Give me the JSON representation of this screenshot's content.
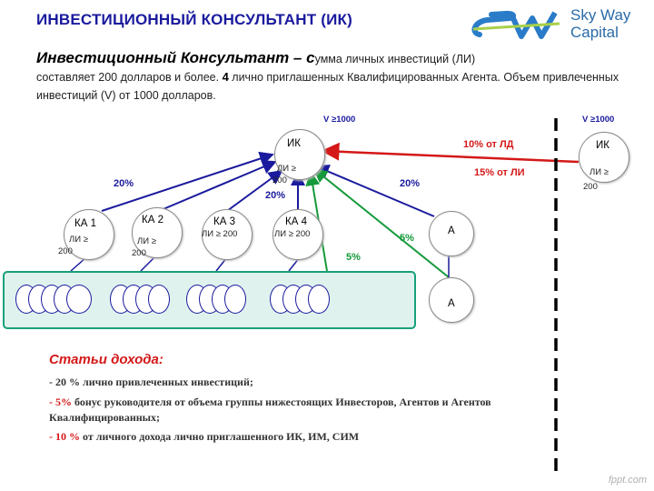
{
  "title": "ИНВЕСТИЦИОННЫЙ КОНСУЛЬТАНТ (ИК)",
  "logo": {
    "line1": "Sky Way",
    "line2": "Capital"
  },
  "intro": {
    "lead": "Инвестиционный Консультант – с",
    "text1": "умма личных инвестиций (ЛИ)",
    "text2": "составляет 200 долларов и более. ",
    "bold4": "4",
    "text3": " лично приглашенных Квалифицированных Агента. Объем привлеченных инвестиций (V) от 1000 долларов."
  },
  "diagram": {
    "ik_main": {
      "label": "ИК",
      "sub1": "ЛИ ≥",
      "sub2": "200"
    },
    "ik_main_v": "V ≥1000",
    "ik_right": {
      "label": "ИК",
      "sub1": "ЛИ ≥",
      "sub2": "200"
    },
    "ik_right_v": "V ≥1000",
    "ka1": {
      "label": "КА 1",
      "sub1": "ЛИ ≥",
      "sub2": "200"
    },
    "ka2": {
      "label": "КА 2",
      "sub1": "ЛИ ≥",
      "sub2": "200"
    },
    "ka3": {
      "label": "КА 3",
      "sub1": "ЛИ ≥ 200"
    },
    "ka4": {
      "label": "КА 4",
      "sub1": "ЛИ ≥ 200"
    },
    "agent_top": "А",
    "agent_bottom": "А",
    "pct_left": "20%",
    "pct_mid": "20%",
    "pct_right": "20%",
    "pct_green1": "5%",
    "pct_green2": "5%",
    "pct_red1": "10% от ЛД",
    "pct_red2": "15% от ЛИ"
  },
  "income": {
    "title": "Статьи дохода:",
    "line1_prefix": "- ",
    "line1_pct": "20 %",
    "line1_text": " лично привлеченных инвестиций;",
    "line2_prefix": "- ",
    "line2_pct": "5%",
    "line2_text": " бонус руководителя от объема группы нижестоящих Инвесторов, Агентов и Агентов Квалифицированных;",
    "line3_prefix": "- ",
    "line3_pct": "10 %",
    "line3_text": " от личного дохода лично приглашенного ИК, ИМ, СИМ"
  },
  "colors": {
    "title": "#1a1a9e",
    "accent_red": "#d41818",
    "accent_green": "#159a3a",
    "box_border": "#18a07a"
  },
  "watermark": "fppt.com"
}
